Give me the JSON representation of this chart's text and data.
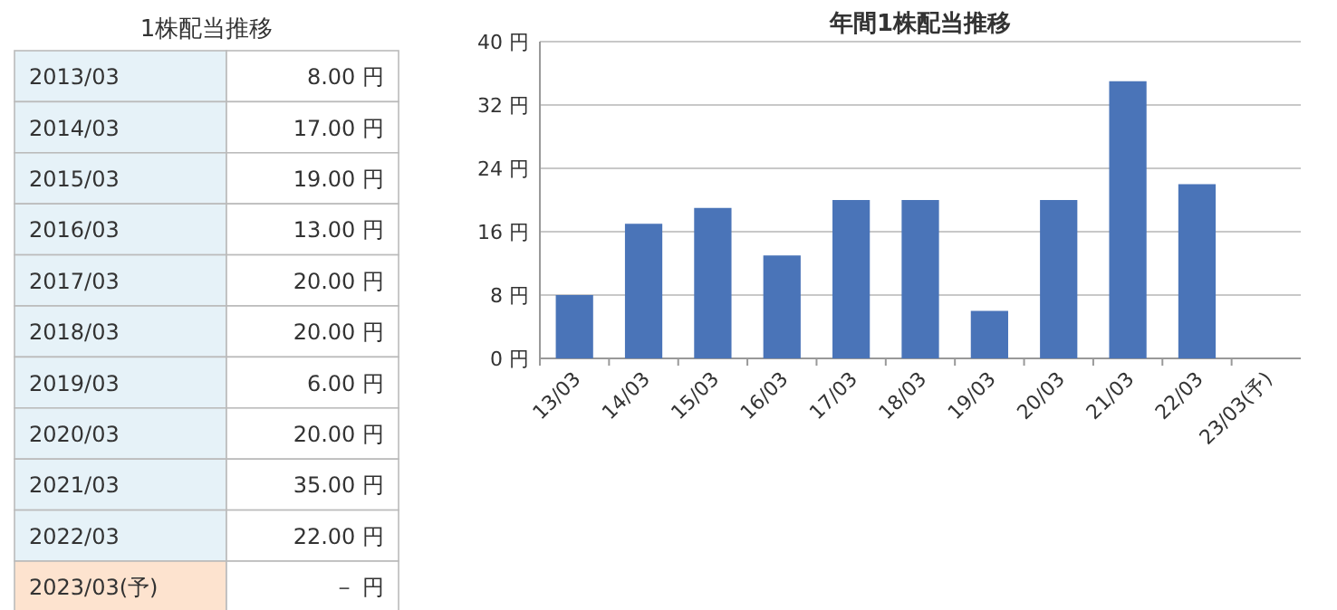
{
  "chart_data": [
    {
      "type": "other",
      "title": "1株配当推移",
      "categories": [
        "2013/03",
        "2014/03",
        "2015/03",
        "2016/03",
        "2017/03",
        "2018/03",
        "2019/03",
        "2020/03",
        "2021/03",
        "2022/03",
        "2023/03(予)"
      ],
      "value_labels": [
        "8.00 円",
        "17.00 円",
        "19.00 円",
        "13.00 円",
        "20.00 円",
        "20.00 円",
        "6.00 円",
        "20.00 円",
        "35.00 円",
        "22.00 円",
        "－ 円"
      ]
    },
    {
      "type": "bar",
      "title": "年間1株配当推移",
      "categories": [
        "13/03",
        "14/03",
        "15/03",
        "16/03",
        "17/03",
        "18/03",
        "19/03",
        "20/03",
        "21/03",
        "22/03",
        "23/03(予)"
      ],
      "values": [
        8,
        17,
        19,
        13,
        20,
        20,
        6,
        20,
        35,
        22,
        null
      ],
      "color": "#4a74b8",
      "ylim": [
        0,
        40
      ],
      "yticks": [
        {
          "value": 0,
          "label": "0 円"
        },
        {
          "value": 8,
          "label": "8 円"
        },
        {
          "value": 16,
          "label": "16 円"
        },
        {
          "value": 24,
          "label": "24 円"
        },
        {
          "value": 32,
          "label": "32 円"
        },
        {
          "value": 40,
          "label": "40 円"
        }
      ],
      "grid": "y"
    }
  ]
}
